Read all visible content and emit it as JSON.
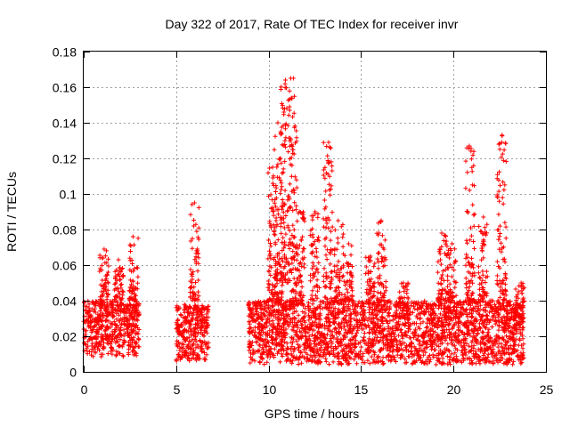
{
  "chart_data": {
    "type": "scatter",
    "title": "Day 322 of 2017, Rate Of TEC Index for receiver invr",
    "xlabel": "GPS time / hours",
    "ylabel": "ROTI / TECUs",
    "xlim": [
      0,
      25
    ],
    "ylim": [
      0,
      0.18
    ],
    "x_ticks": [
      0,
      5,
      10,
      15,
      20,
      25
    ],
    "x_tick_labels": [
      "0",
      "5",
      "10",
      "15",
      "20",
      "25"
    ],
    "y_ticks": [
      0,
      0.02,
      0.04,
      0.06,
      0.08,
      0.1,
      0.12,
      0.14,
      0.16,
      0.18
    ],
    "y_tick_labels": [
      "0",
      "0.02",
      "0.04",
      "0.06",
      "0.08",
      "0.1",
      "0.12",
      "0.14",
      "0.16",
      "0.18"
    ],
    "grid": true,
    "marker": "+",
    "marker_color": "#ff0000",
    "series": [
      {
        "name": "ROTI",
        "segments": [
          {
            "x_range": [
              0.0,
              3.0
            ],
            "base_range": [
              0.008,
              0.04
            ]
          },
          {
            "x_range": [
              5.0,
              6.8
            ],
            "base_range": [
              0.006,
              0.038
            ]
          },
          {
            "x_range": [
              8.9,
              23.8
            ],
            "base_range": [
              0.004,
              0.04
            ]
          }
        ],
        "clusters": [
          {
            "x": 1.1,
            "ymin": 0.04,
            "ymax": 0.069
          },
          {
            "x": 1.9,
            "ymin": 0.04,
            "ymax": 0.063
          },
          {
            "x": 2.7,
            "ymin": 0.04,
            "ymax": 0.076
          },
          {
            "x": 6.0,
            "ymin": 0.04,
            "ymax": 0.095
          },
          {
            "x": 10.2,
            "ymin": 0.04,
            "ymax": 0.115
          },
          {
            "x": 10.5,
            "ymin": 0.04,
            "ymax": 0.14
          },
          {
            "x": 10.9,
            "ymin": 0.05,
            "ymax": 0.164
          },
          {
            "x": 11.3,
            "ymin": 0.04,
            "ymax": 0.165
          },
          {
            "x": 11.7,
            "ymin": 0.04,
            "ymax": 0.09
          },
          {
            "x": 12.5,
            "ymin": 0.04,
            "ymax": 0.09
          },
          {
            "x": 13.2,
            "ymin": 0.04,
            "ymax": 0.129
          },
          {
            "x": 13.8,
            "ymin": 0.04,
            "ymax": 0.085
          },
          {
            "x": 14.3,
            "ymin": 0.04,
            "ymax": 0.072
          },
          {
            "x": 15.5,
            "ymin": 0.04,
            "ymax": 0.065
          },
          {
            "x": 16.1,
            "ymin": 0.04,
            "ymax": 0.085
          },
          {
            "x": 17.3,
            "ymin": 0.03,
            "ymax": 0.05
          },
          {
            "x": 19.4,
            "ymin": 0.04,
            "ymax": 0.078
          },
          {
            "x": 19.9,
            "ymin": 0.04,
            "ymax": 0.072
          },
          {
            "x": 20.9,
            "ymin": 0.04,
            "ymax": 0.127
          },
          {
            "x": 21.6,
            "ymin": 0.04,
            "ymax": 0.087
          },
          {
            "x": 22.6,
            "ymin": 0.04,
            "ymax": 0.133
          },
          {
            "x": 23.6,
            "ymin": 0.03,
            "ymax": 0.05
          }
        ]
      }
    ]
  }
}
